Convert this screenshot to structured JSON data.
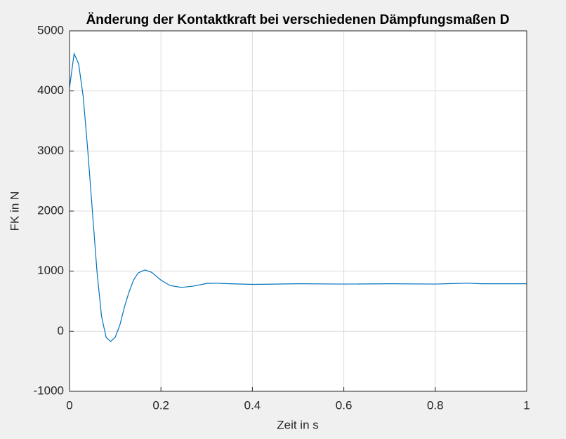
{
  "chart_data": {
    "type": "line",
    "title": "Änderung der Kontaktkraft bei verschiedenen Dämpfungsmaßen D",
    "x_label": "Zeit in s",
    "y_label": "FK in N",
    "x": [
      0,
      0.01,
      0.02,
      0.03,
      0.04,
      0.05,
      0.06,
      0.07,
      0.08,
      0.09,
      0.1,
      0.11,
      0.12,
      0.13,
      0.14,
      0.15,
      0.165,
      0.18,
      0.2,
      0.22,
      0.245,
      0.27,
      0.3,
      0.32,
      0.35,
      0.4,
      0.5,
      0.6,
      0.7,
      0.8,
      0.87,
      0.9,
      1.0
    ],
    "series": [
      {
        "name": "D",
        "color": "#0072bd",
        "values": [
          4050,
          4620,
          4450,
          3900,
          3000,
          2000,
          1000,
          250,
          -100,
          -170,
          -100,
          100,
          400,
          650,
          850,
          970,
          1020,
          980,
          850,
          760,
          730,
          750,
          795,
          800,
          790,
          780,
          790,
          785,
          790,
          785,
          800,
          790,
          790
        ]
      }
    ],
    "xlim": [
      0,
      1
    ],
    "xticks": [
      0,
      0.2,
      0.4,
      0.6,
      0.8,
      1
    ],
    "ylim": [
      -1000,
      5000
    ],
    "yticks": [
      -1000,
      0,
      1000,
      2000,
      3000,
      4000,
      5000
    ],
    "grid": true
  }
}
